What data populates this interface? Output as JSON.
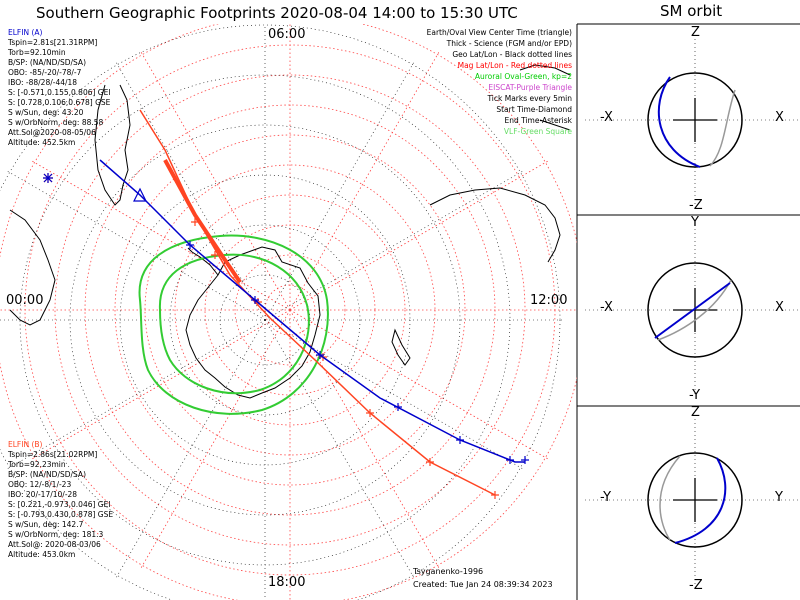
{
  "title": "Southern Geographic Footprints 2020-08-04 14:00 to 15:30 UTC",
  "orbit_title": "SM orbit",
  "time_labels": {
    "top": "06:00",
    "left": "00:00",
    "right": "12:00",
    "bottom": "18:00"
  },
  "legend": [
    {
      "text": "Earth/Oval View Center Time (triangle)",
      "color": "#000000"
    },
    {
      "text": "Thick - Science (FGM and/or EPD)",
      "color": "#000000"
    },
    {
      "text": "Geo Lat/Lon - Black dotted lines",
      "color": "#000000"
    },
    {
      "text": "Mag Lat/Lon - Red dotted lines",
      "color": "#ff0000"
    },
    {
      "text": "Auroral Oval-Green, kp=2",
      "color": "#00cc00"
    },
    {
      "text": "EISCAT-Purple Triangle",
      "color": "#cc44cc"
    },
    {
      "text": "Tick Marks every 5min",
      "color": "#000000"
    },
    {
      "text": "Start Time-Diamond",
      "color": "#000000"
    },
    {
      "text": "End Time-Asterisk",
      "color": "#000000"
    },
    {
      "text": "VLF-Green Square",
      "color": "#66dd66"
    }
  ],
  "elfin_a": {
    "lines": [
      "ELFIN (A)",
      "Tspin=2.81s[21.31RPM]",
      "Torb=92.10min",
      "B/SP: (NA/ND/SD/SA)",
      "OBO: -85/-20/-78/-7",
      "IBO: -88/28/-44/18",
      "S: [-0.571,0.155,0.806] GEI",
      "S: [0.728,0.106,0.678] GSE",
      "S w/Sun, deg: 43.20",
      "S w/OrbNorm, deg: 88.58",
      "Att.Sol@2020-08-05/06",
      "Altitude: 452.5km"
    ],
    "color": "#0000cc"
  },
  "elfin_b": {
    "lines": [
      "ELFIN (B)",
      "Tspin=2.86s[21.02RPM]",
      "Torb=92.23min",
      "B/SP: (NA/ND/SD/SA)",
      "OBO: 12/-8/1/-23",
      "IBO: 20/-17/10/-28",
      "S: [0.221,-0.973,0.046] GEI",
      "S: [-0.793,0.430,0.878] GSE",
      "S w/Sun, deg: 142.7",
      "S w/OrbNorm, deg: 181.3",
      "Att.Sol@: 2020-08-03/06",
      "Altitude: 453.0km"
    ],
    "color": "#ff4422"
  },
  "footer": {
    "model": "Tsyganenko-1996",
    "created": "Created: Tue Jan 24 08:39:34 2023"
  },
  "orbit_panels": [
    {
      "top": "Z",
      "bottom": "-Z",
      "left": "-X",
      "right": "X"
    },
    {
      "top": "Y",
      "bottom": "-Y",
      "left": "-X",
      "right": "X"
    },
    {
      "top": "Z",
      "bottom": "-Z",
      "left": "-Y",
      "right": "Y"
    }
  ],
  "colors": {
    "elfin_a": "#0000cc",
    "elfin_b": "#ff4422",
    "oval": "#33cc33",
    "grid_red": "#ff4444"
  }
}
